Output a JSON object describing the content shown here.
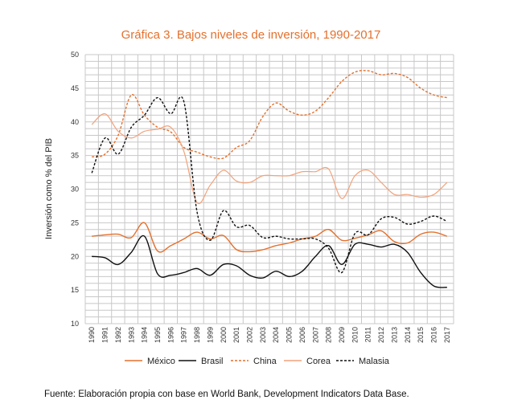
{
  "chart_data": {
    "type": "line",
    "title": "Gráfica 3. Bajos niveles de inversión, 1990-2017",
    "xlabel": "",
    "ylabel": "Inversión como % del PIB",
    "ylim": [
      10,
      50
    ],
    "yticks": [
      10,
      15,
      20,
      25,
      30,
      35,
      40,
      45,
      50
    ],
    "grid": true,
    "legend_position": "bottom",
    "categories": [
      "1990",
      "1991",
      "1992",
      "1993",
      "1994",
      "1995",
      "1996",
      "1997",
      "1998",
      "1999",
      "2000",
      "2001",
      "2002",
      "2003",
      "2004",
      "2005",
      "2006",
      "2007",
      "2008",
      "2009",
      "2010",
      "2011",
      "2012",
      "2013",
      "2014",
      "2015",
      "2016",
      "2017"
    ],
    "series": [
      {
        "name": "México",
        "color": "#e4702d",
        "dash": "solid",
        "values": [
          23.0,
          23.2,
          23.3,
          22.8,
          25.0,
          20.8,
          21.6,
          22.6,
          23.6,
          22.6,
          23.1,
          21.0,
          20.7,
          21.0,
          21.6,
          22.0,
          22.6,
          23.0,
          24.0,
          22.4,
          22.7,
          23.2,
          23.8,
          22.2,
          22.0,
          23.3,
          23.6,
          23.0
        ]
      },
      {
        "name": "Brasil",
        "color": "#111111",
        "dash": "solid",
        "values": [
          20.0,
          19.8,
          18.8,
          20.6,
          23.0,
          17.4,
          17.2,
          17.6,
          18.2,
          17.2,
          18.8,
          18.6,
          17.2,
          16.8,
          17.8,
          17.0,
          17.8,
          20.0,
          21.6,
          18.8,
          21.8,
          21.8,
          21.4,
          21.8,
          20.6,
          17.6,
          15.6,
          15.4
        ]
      },
      {
        "name": "China",
        "color": "#e4702d",
        "dash": "dashed",
        "values": [
          34.8,
          35.2,
          38.0,
          44.0,
          41.0,
          39.2,
          38.5,
          36.2,
          35.5,
          34.8,
          34.6,
          36.2,
          37.2,
          40.8,
          42.8,
          41.6,
          41.0,
          41.6,
          43.6,
          46.0,
          47.4,
          47.6,
          47.0,
          47.2,
          46.6,
          45.0,
          44.0,
          43.6
        ]
      },
      {
        "name": "Corea",
        "color": "#f2a27a",
        "dash": "solid",
        "values": [
          39.6,
          41.2,
          38.6,
          37.6,
          38.6,
          38.9,
          39.2,
          35.6,
          28.0,
          30.6,
          32.8,
          31.2,
          31.0,
          32.0,
          32.0,
          32.0,
          32.6,
          32.6,
          33.0,
          28.6,
          32.0,
          32.8,
          31.0,
          29.2,
          29.2,
          28.8,
          29.2,
          31.0
        ]
      },
      {
        "name": "Malasia",
        "color": "#111111",
        "dash": "dashed",
        "values": [
          32.4,
          37.6,
          35.2,
          39.2,
          41.0,
          43.6,
          41.2,
          43.0,
          26.6,
          22.4,
          26.8,
          24.4,
          24.6,
          22.8,
          23.0,
          22.6,
          22.6,
          22.6,
          21.2,
          17.6,
          23.4,
          23.2,
          25.6,
          25.8,
          24.8,
          25.2,
          26.0,
          25.2
        ]
      }
    ]
  },
  "source_note": "Fuente: Elaboración propia con base en World Bank, Development Indicators Data Base."
}
